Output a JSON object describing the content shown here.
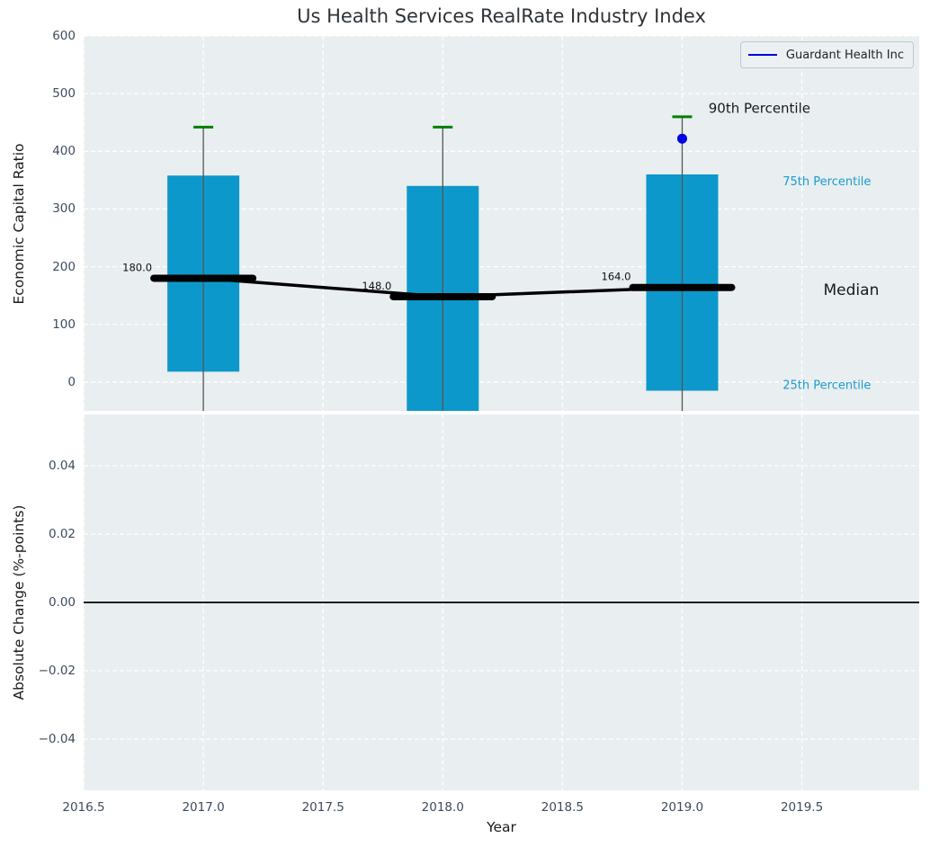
{
  "title": "Us Health Services RealRate Industry Index",
  "legend": {
    "label": "Guardant Health Inc",
    "line_color": "#0000e0"
  },
  "colors": {
    "plot_bg": "#e9eef0",
    "grid": "#ffffff",
    "bar": "#0d98cc",
    "cap_90th": "#008000",
    "median_line": "#000000",
    "whisker": "#555555",
    "overlay_point": "#0000e0",
    "tick_label": "#3d4b5f",
    "annotation_dark": "#1a1a1a",
    "annotation_percentile": "#1b9cd0",
    "zero_line": "#000000"
  },
  "chart_data": {
    "type": "box-timeseries",
    "xlabel": "Year",
    "xticks": [
      2016.5,
      2017.0,
      2017.5,
      2018.0,
      2018.5,
      2019.0,
      2019.5
    ],
    "xtick_labels": [
      "2016.5",
      "2017.0",
      "2017.5",
      "2018.0",
      "2018.5",
      "2019.0",
      "2019.5"
    ],
    "xlim": [
      2016.5,
      2019.99
    ],
    "top": {
      "ylabel": "Economic Capital Ratio",
      "ylim": [
        -50,
        600
      ],
      "yticks": [
        0,
        100,
        200,
        300,
        400,
        500,
        600
      ],
      "ytick_labels": [
        "0",
        "100",
        "200",
        "300",
        "400",
        "500",
        "600"
      ],
      "boxes": [
        {
          "year": 2017,
          "p90": 442,
          "p75": 358,
          "median": 180,
          "p25": 18,
          "whisker_low": -50,
          "median_label": "180.0"
        },
        {
          "year": 2018,
          "p90": 442,
          "p75": 340,
          "median": 148,
          "p25": -50,
          "whisker_low": -50,
          "median_label": "148.0"
        },
        {
          "year": 2019,
          "p90": 460,
          "p75": 360,
          "median": 164,
          "p25": -15,
          "whisker_low": -50,
          "median_label": "164.0"
        }
      ],
      "median_series": {
        "x": [
          2017,
          2018,
          2019
        ],
        "y": [
          180,
          148,
          164
        ]
      },
      "overlay_point": {
        "series": "Guardant Health Inc",
        "year": 2019,
        "value": 422
      },
      "annotations": [
        {
          "text": "90th Percentile",
          "x": 2019.11,
          "y": 475,
          "color": "#1a1a1a",
          "size": 15
        },
        {
          "text": "75th Percentile",
          "x": 2019.42,
          "y": 348,
          "color": "#1b9cd0",
          "size": 13
        },
        {
          "text": "Median",
          "x": 2019.59,
          "y": 160,
          "color": "#1a1a1a",
          "size": 17
        },
        {
          "text": "25th Percentile",
          "x": 2019.42,
          "y": -5,
          "color": "#1b9cd0",
          "size": 13
        }
      ]
    },
    "bottom": {
      "ylabel": "Absolute Change (%-points)",
      "ylim": [
        -0.055,
        0.055
      ],
      "yticks": [
        0.04,
        0.02,
        0.0,
        -0.02,
        -0.04
      ],
      "ytick_labels": [
        "0.04",
        "0.02",
        "0.00",
        "−0.02",
        "−0.04"
      ],
      "zero_line": 0.0
    }
  }
}
